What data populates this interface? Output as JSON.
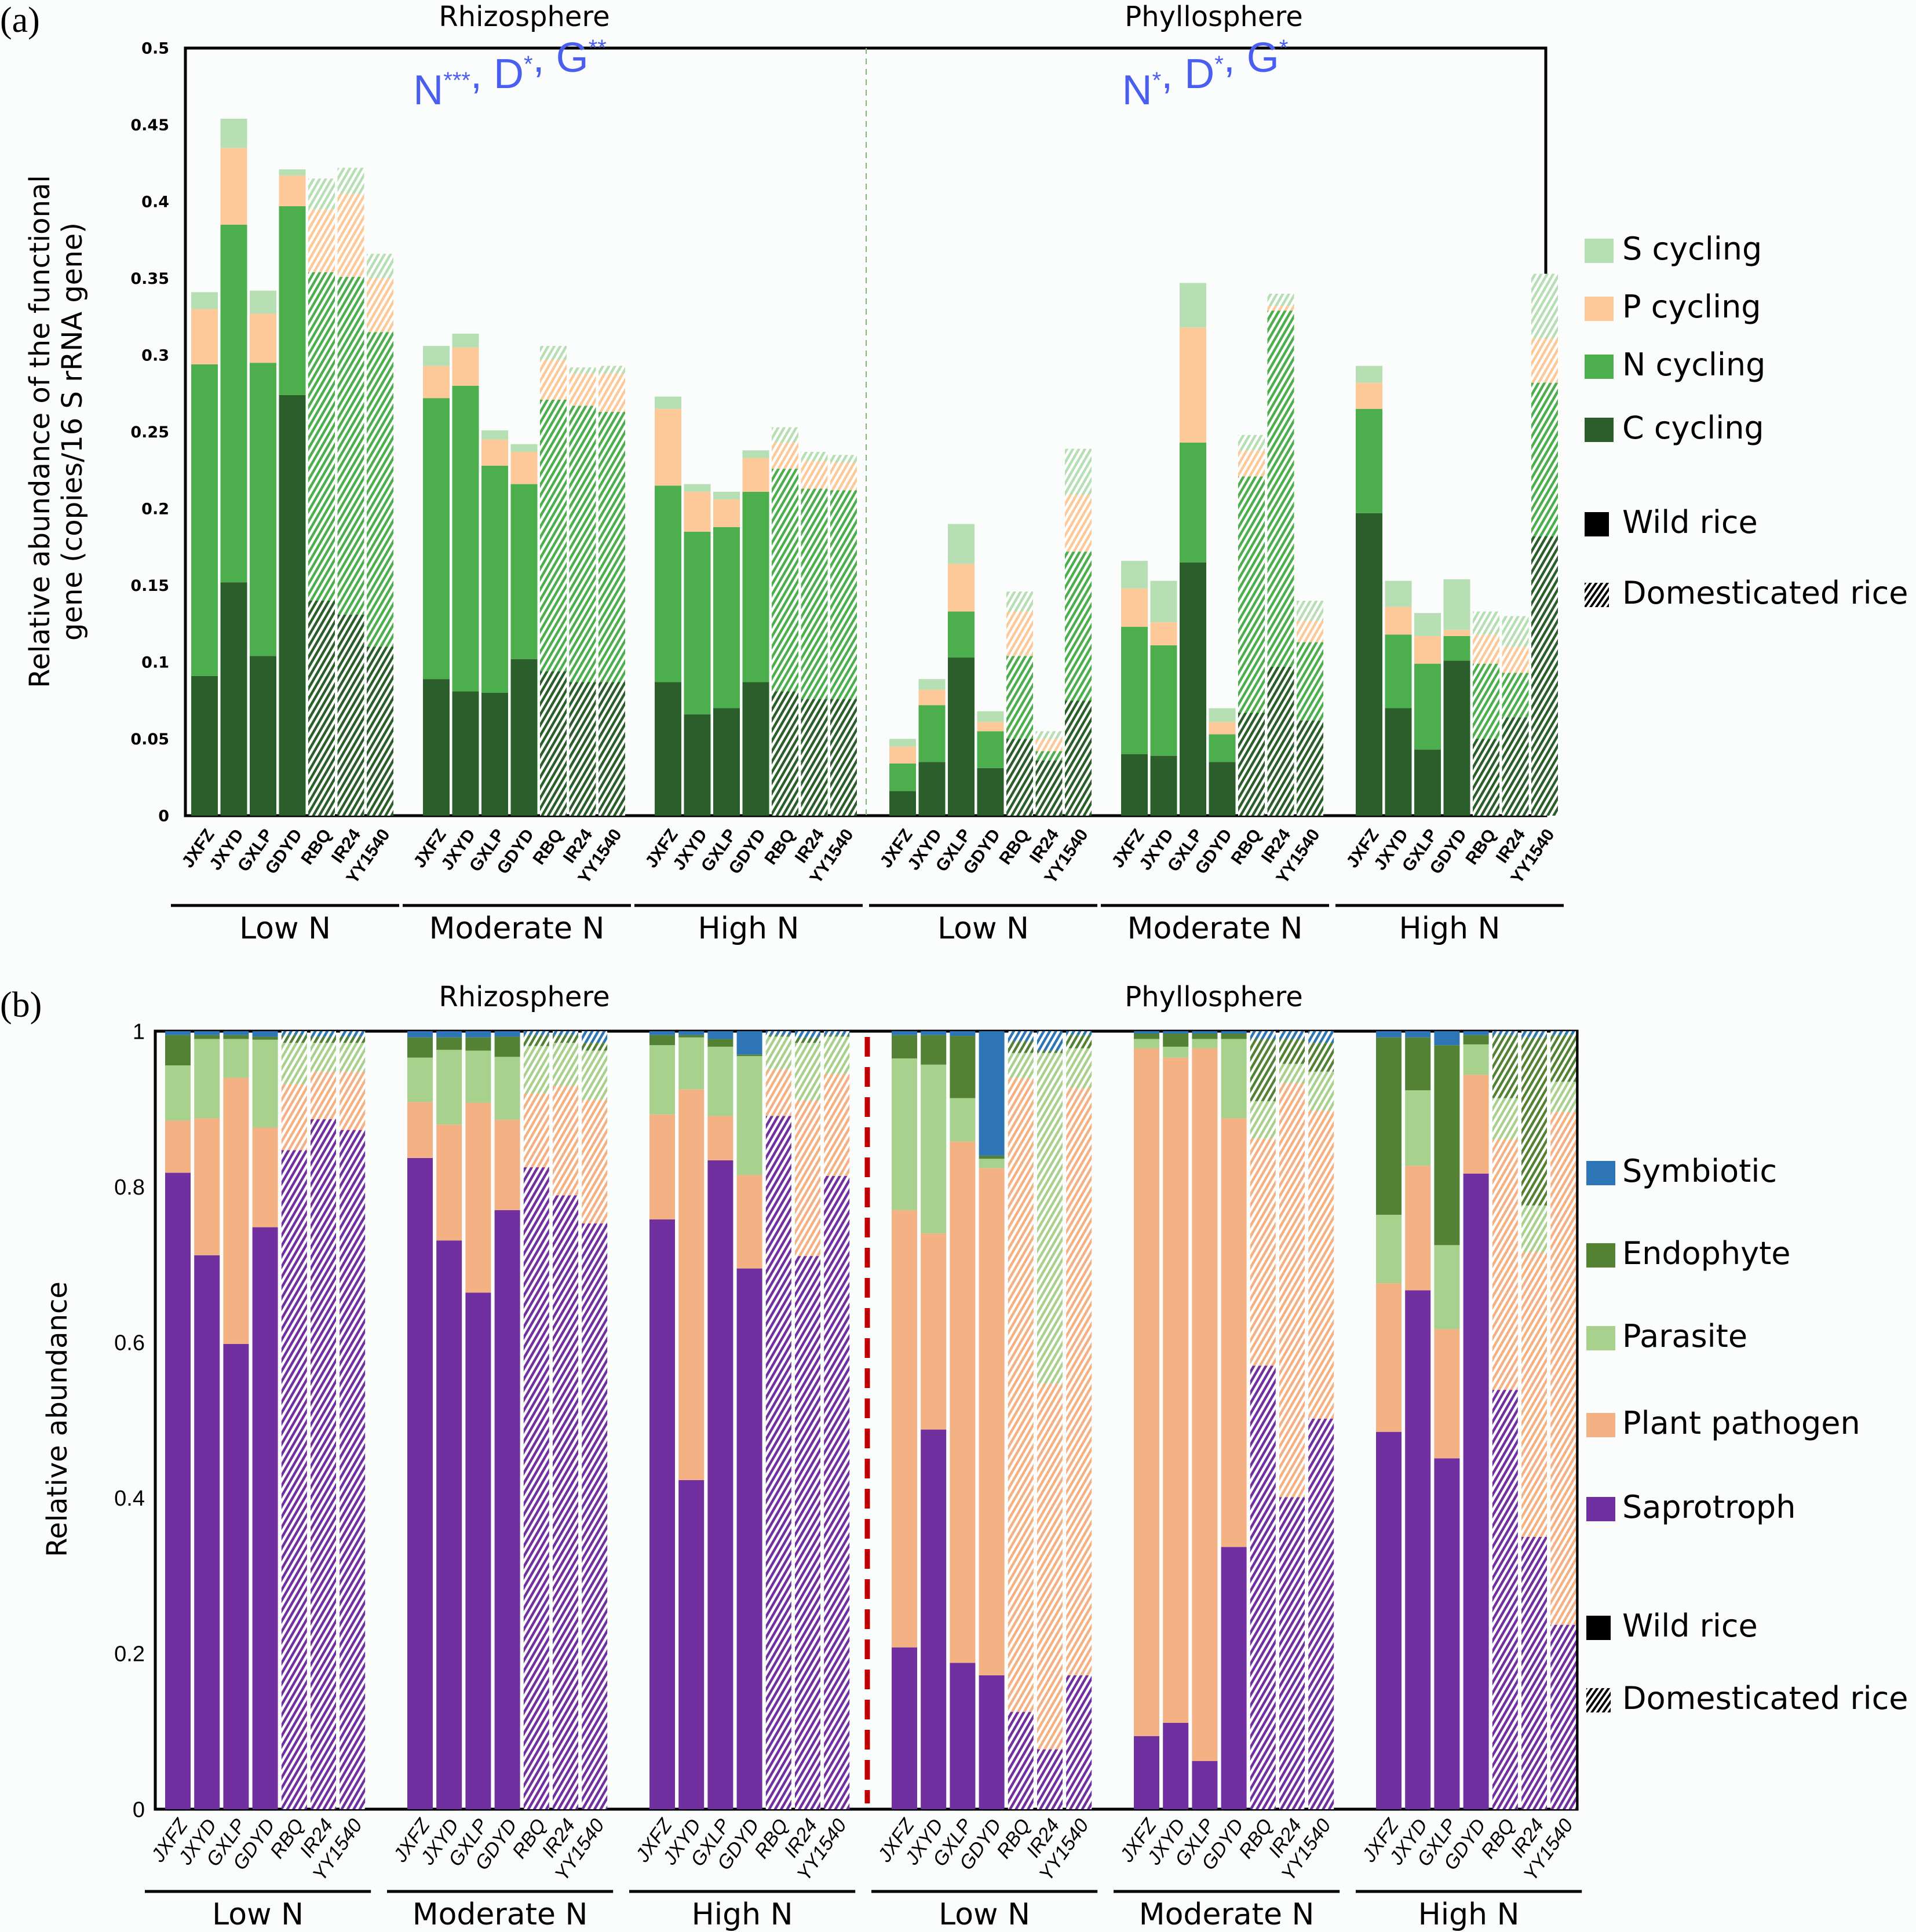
{
  "chart_data": [
    {
      "panel": "(a)",
      "type": "bar",
      "stacked": true,
      "title_left": "Rhizosphere",
      "title_right": "Phyllosphere",
      "annotation_left": {
        "parts": [
          [
            "N",
            "***"
          ],
          [
            "D",
            "*"
          ],
          [
            "G",
            "**"
          ]
        ]
      },
      "annotation_right": {
        "parts": [
          [
            "N",
            "*"
          ],
          [
            "D",
            "*"
          ],
          [
            "G",
            "*"
          ]
        ]
      },
      "ylabel_line1": "Relative abundance of the functional",
      "ylabel_line2": "gene (copies/16 S rRNA gene)",
      "ylim": [
        0,
        0.5
      ],
      "yticks": [
        "0",
        "0.05",
        "0.1",
        "0.15",
        "0.2",
        "0.25",
        "0.3",
        "0.35",
        "0.4",
        "0.45",
        "0.5"
      ],
      "ytick_values": [
        0,
        0.05,
        0.1,
        0.15,
        0.2,
        0.25,
        0.3,
        0.35,
        0.4,
        0.45,
        0.5
      ],
      "cultivars": [
        "JXFZ",
        "JXYD",
        "GXLP",
        "GDYD",
        "RBQ",
        "IR24",
        "YY1540"
      ],
      "domesticated": [
        false,
        false,
        false,
        false,
        true,
        true,
        true
      ],
      "groups": [
        "Low N",
        "Moderate N",
        "High N",
        "Low N",
        "Moderate N",
        "High N"
      ],
      "stack_order": [
        "C cycling",
        "N cycling",
        "P cycling",
        "S cycling"
      ],
      "colors": {
        "C cycling": "#2b5e2b",
        "N cycling": "#4cae4c",
        "P cycling": "#fec998",
        "S cycling": "#b7dfb4"
      },
      "legend": [
        "S cycling",
        "P cycling",
        "N cycling",
        "C cycling"
      ],
      "legend_pattern": [
        "Wild rice",
        "Domesticated rice"
      ],
      "cumulative": [
        [
          [
            0.091,
            0.294,
            0.33,
            0.341
          ],
          [
            0.152,
            0.385,
            0.435,
            0.454
          ],
          [
            0.104,
            0.295,
            0.327,
            0.342
          ],
          [
            0.274,
            0.397,
            0.417,
            0.421
          ],
          [
            0.14,
            0.354,
            0.395,
            0.415
          ],
          [
            0.131,
            0.351,
            0.405,
            0.422
          ],
          [
            0.11,
            0.315,
            0.35,
            0.366
          ]
        ],
        [
          [
            0.089,
            0.272,
            0.293,
            0.306
          ],
          [
            0.081,
            0.28,
            0.305,
            0.314
          ],
          [
            0.08,
            0.228,
            0.245,
            0.251
          ],
          [
            0.102,
            0.216,
            0.237,
            0.242
          ],
          [
            0.094,
            0.271,
            0.297,
            0.306
          ],
          [
            0.087,
            0.267,
            0.288,
            0.292
          ],
          [
            0.087,
            0.263,
            0.288,
            0.293
          ]
        ],
        [
          [
            0.087,
            0.215,
            0.265,
            0.273
          ],
          [
            0.066,
            0.185,
            0.211,
            0.216
          ],
          [
            0.07,
            0.188,
            0.206,
            0.211
          ],
          [
            0.087,
            0.211,
            0.233,
            0.238
          ],
          [
            0.081,
            0.226,
            0.243,
            0.253
          ],
          [
            0.076,
            0.213,
            0.231,
            0.237
          ],
          [
            0.076,
            0.212,
            0.23,
            0.235
          ]
        ],
        [
          [
            0.016,
            0.034,
            0.045,
            0.05
          ],
          [
            0.035,
            0.072,
            0.082,
            0.089
          ],
          [
            0.103,
            0.133,
            0.164,
            0.19
          ],
          [
            0.031,
            0.055,
            0.061,
            0.068
          ],
          [
            0.05,
            0.104,
            0.133,
            0.146
          ],
          [
            0.036,
            0.042,
            0.05,
            0.055
          ],
          [
            0.075,
            0.172,
            0.209,
            0.239
          ]
        ],
        [
          [
            0.04,
            0.123,
            0.148,
            0.166
          ],
          [
            0.039,
            0.111,
            0.126,
            0.153
          ],
          [
            0.165,
            0.243,
            0.318,
            0.347
          ],
          [
            0.035,
            0.053,
            0.061,
            0.07
          ],
          [
            0.067,
            0.221,
            0.238,
            0.248
          ],
          [
            0.097,
            0.329,
            0.332,
            0.34
          ],
          [
            0.062,
            0.113,
            0.127,
            0.14
          ]
        ],
        [
          [
            0.197,
            0.265,
            0.282,
            0.293
          ],
          [
            0.07,
            0.118,
            0.136,
            0.153
          ],
          [
            0.043,
            0.099,
            0.117,
            0.132
          ],
          [
            0.101,
            0.117,
            0.121,
            0.154
          ],
          [
            0.05,
            0.099,
            0.118,
            0.133
          ],
          [
            0.064,
            0.093,
            0.11,
            0.13
          ],
          [
            0.182,
            0.282,
            0.311,
            0.353
          ]
        ]
      ]
    },
    {
      "panel": "(b)",
      "type": "bar",
      "stacked": true,
      "title_left": "Rhizosphere",
      "title_right": "Phyllosphere",
      "ylabel": "Relative abundance",
      "ylim": [
        0,
        1
      ],
      "yticks": [
        "0",
        "0.2",
        "0.4",
        "0.6",
        "0.8",
        "1"
      ],
      "ytick_values": [
        0,
        0.2,
        0.4,
        0.6,
        0.8,
        1
      ],
      "cultivars": [
        "JXFZ",
        "JXYD",
        "GXLP",
        "GDYD",
        "RBQ",
        "IR24",
        "YY1540"
      ],
      "domesticated": [
        false,
        false,
        false,
        false,
        true,
        true,
        true
      ],
      "groups": [
        "Low N",
        "Moderate N",
        "High N",
        "Low N",
        "Moderate N",
        "High N"
      ],
      "stack_order": [
        "Saprotroph",
        "Plant pathogen",
        "Parasite",
        "Endophyte",
        "Symbiotic"
      ],
      "colors": {
        "Saprotroph": "#7030a0",
        "Plant pathogen": "#f4b183",
        "Parasite": "#a9d18e",
        "Endophyte": "#548235",
        "Symbiotic": "#2e75b6"
      },
      "legend": [
        "Symbiotic",
        "Endophyte",
        "Parasite",
        "Plant pathogen",
        "Saprotroph"
      ],
      "legend_pattern": [
        "Wild rice",
        "Domesticated rice"
      ],
      "cumulative": [
        [
          [
            0.818,
            0.885,
            0.956,
            0.995,
            1
          ],
          [
            0.712,
            0.888,
            0.99,
            0.995,
            1
          ],
          [
            0.598,
            0.94,
            0.99,
            0.995,
            1
          ],
          [
            0.748,
            0.876,
            0.989,
            0.993,
            1
          ],
          [
            0.847,
            0.932,
            0.985,
            0.995,
            1
          ],
          [
            0.887,
            0.948,
            0.985,
            0.993,
            1
          ],
          [
            0.873,
            0.948,
            0.985,
            0.993,
            1
          ]
        ],
        [
          [
            0.837,
            0.909,
            0.966,
            0.992,
            1
          ],
          [
            0.731,
            0.88,
            0.976,
            0.992,
            1
          ],
          [
            0.664,
            0.908,
            0.975,
            0.992,
            1
          ],
          [
            0.77,
            0.886,
            0.967,
            0.993,
            1
          ],
          [
            0.825,
            0.92,
            0.981,
            0.995,
            1
          ],
          [
            0.789,
            0.93,
            0.985,
            0.995,
            1
          ],
          [
            0.753,
            0.912,
            0.975,
            0.985,
            1
          ]
        ],
        [
          [
            0.758,
            0.893,
            0.982,
            0.995,
            1
          ],
          [
            0.423,
            0.925,
            0.992,
            0.995,
            1
          ],
          [
            0.834,
            0.891,
            0.98,
            0.99,
            1
          ],
          [
            0.695,
            0.815,
            0.968,
            0.97,
            1
          ],
          [
            0.891,
            0.951,
            0.993,
            0.995,
            1
          ],
          [
            0.711,
            0.911,
            0.985,
            0.992,
            1
          ],
          [
            0.814,
            0.945,
            0.993,
            0.995,
            1
          ]
        ],
        [
          [
            0.208,
            0.77,
            0.965,
            0.995,
            1
          ],
          [
            0.488,
            0.74,
            0.957,
            0.995,
            1
          ],
          [
            0.188,
            0.858,
            0.914,
            0.994,
            1
          ],
          [
            0.172,
            0.824,
            0.836,
            0.84,
            1
          ],
          [
            0.125,
            0.94,
            0.972,
            0.987,
            1
          ],
          [
            0.077,
            0.547,
            0.972,
            0.975,
            1
          ],
          [
            0.172,
            0.927,
            0.978,
            0.995,
            1
          ]
        ],
        [
          [
            0.094,
            0.978,
            0.99,
            0.997,
            1
          ],
          [
            0.111,
            0.966,
            0.98,
            0.997,
            1
          ],
          [
            0.062,
            0.978,
            0.99,
            0.997,
            1
          ],
          [
            0.337,
            0.888,
            0.99,
            0.997,
            1
          ],
          [
            0.57,
            0.862,
            0.91,
            0.99,
            1
          ],
          [
            0.401,
            0.933,
            0.958,
            0.99,
            1
          ],
          [
            0.502,
            0.898,
            0.948,
            0.985,
            1
          ]
        ],
        [
          [
            0.485,
            0.676,
            0.764,
            0.992,
            1
          ],
          [
            0.667,
            0.827,
            0.924,
            0.992,
            1
          ],
          [
            0.451,
            0.617,
            0.725,
            0.982,
            1
          ],
          [
            0.817,
            0.944,
            0.983,
            0.995,
            1
          ],
          [
            0.539,
            0.861,
            0.914,
            0.995,
            1
          ],
          [
            0.35,
            0.716,
            0.776,
            0.992,
            1
          ],
          [
            0.237,
            0.896,
            0.935,
            0.995,
            1
          ]
        ]
      ]
    }
  ],
  "panel_labels": [
    "(a)",
    "(b)"
  ]
}
